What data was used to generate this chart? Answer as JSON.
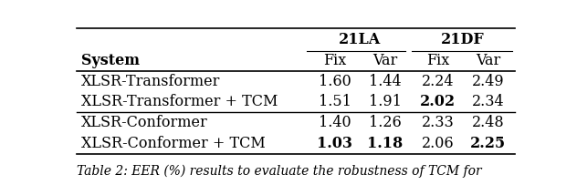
{
  "col_headers_top": [
    "21LA",
    "21DF"
  ],
  "col_headers_sub": [
    "System",
    "Fix",
    "Var",
    "Fix",
    "Var"
  ],
  "rows": [
    {
      "system": "XLSR-Transformer",
      "values": [
        "1.60",
        "1.44",
        "2.24",
        "2.49"
      ],
      "bold": [
        false,
        false,
        false,
        false
      ]
    },
    {
      "system": "XLSR-Transformer + TCM",
      "values": [
        "1.51",
        "1.91",
        "2.02",
        "2.34"
      ],
      "bold": [
        false,
        false,
        true,
        false
      ]
    },
    {
      "system": "XLSR-Conformer",
      "values": [
        "1.40",
        "1.26",
        "2.33",
        "2.48"
      ],
      "bold": [
        false,
        false,
        false,
        false
      ]
    },
    {
      "system": "XLSR-Conformer + TCM",
      "values": [
        "1.03",
        "1.18",
        "2.06",
        "2.25"
      ],
      "bold": [
        true,
        true,
        false,
        true
      ]
    }
  ],
  "group_separators": [
    2
  ],
  "caption_text": "Table 2: EER (%) results to evaluate the robustness of TCM for",
  "bg_color": "#ffffff",
  "font_size": 11.5,
  "caption_font_size": 10
}
